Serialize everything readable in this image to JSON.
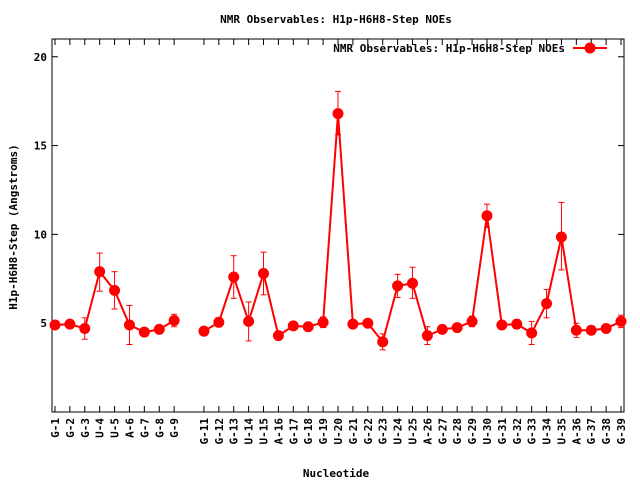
{
  "chart_data": {
    "type": "line",
    "title": "NMR Observables: H1p-H6H8-Step NOEs",
    "xlabel": "Nucleotide",
    "ylabel": "H1p-H6H8-Step (Angstroms)",
    "ylim": [
      0,
      21
    ],
    "yticks": [
      5,
      10,
      15,
      20
    ],
    "legend_position": "top-right",
    "color": "#ff0000",
    "grid": false,
    "categories": [
      "G-1",
      "G-2",
      "G-3",
      "U-4",
      "U-5",
      "A-6",
      "G-7",
      "G-8",
      "G-9",
      "G-11",
      "G-12",
      "G-13",
      "U-14",
      "U-15",
      "A-16",
      "G-17",
      "G-18",
      "G-19",
      "U-20",
      "G-21",
      "G-22",
      "G-23",
      "U-24",
      "U-25",
      "A-26",
      "G-27",
      "G-28",
      "G-29",
      "U-30",
      "G-31",
      "G-32",
      "G-33",
      "U-34",
      "U-35",
      "A-36",
      "G-37",
      "G-38",
      "G-39"
    ],
    "x": [
      1,
      2,
      3,
      4,
      5,
      6,
      7,
      8,
      9,
      11,
      12,
      13,
      14,
      15,
      16,
      17,
      18,
      19,
      20,
      21,
      22,
      23,
      24,
      25,
      26,
      27,
      28,
      29,
      30,
      31,
      32,
      33,
      34,
      35,
      36,
      37,
      38,
      39
    ],
    "series": [
      {
        "name": "NMR Observables: H1p-H6H8-Step NOEs",
        "values": [
          4.9,
          4.95,
          4.7,
          7.9,
          6.85,
          4.9,
          4.5,
          4.65,
          5.15,
          4.55,
          5.05,
          7.6,
          5.1,
          7.8,
          4.3,
          4.85,
          4.8,
          5.05,
          16.8,
          4.95,
          5.0,
          3.95,
          7.1,
          7.25,
          4.3,
          4.65,
          4.75,
          5.1,
          11.05,
          4.9,
          4.95,
          4.45,
          6.1,
          9.85,
          4.6,
          4.6,
          4.7,
          5.1
        ],
        "err_low": [
          4.8,
          4.85,
          4.1,
          6.8,
          5.8,
          3.8,
          4.3,
          4.5,
          4.8,
          4.4,
          4.8,
          6.4,
          4.0,
          6.6,
          4.2,
          4.75,
          4.7,
          4.75,
          15.6,
          4.85,
          4.85,
          3.5,
          6.45,
          6.4,
          3.8,
          4.5,
          4.65,
          4.8,
          10.4,
          4.8,
          4.7,
          3.8,
          5.3,
          8.0,
          4.2,
          4.5,
          4.6,
          4.75
        ],
        "err_high": [
          5.0,
          5.05,
          5.3,
          8.95,
          7.9,
          6.0,
          4.7,
          4.8,
          5.5,
          4.7,
          5.3,
          8.8,
          6.2,
          9.0,
          4.4,
          4.95,
          4.9,
          5.35,
          18.05,
          5.05,
          5.15,
          4.4,
          7.75,
          8.15,
          4.8,
          4.8,
          4.85,
          5.4,
          11.7,
          5.0,
          5.2,
          5.1,
          6.9,
          11.8,
          5.0,
          4.7,
          4.8,
          5.45
        ]
      }
    ]
  }
}
